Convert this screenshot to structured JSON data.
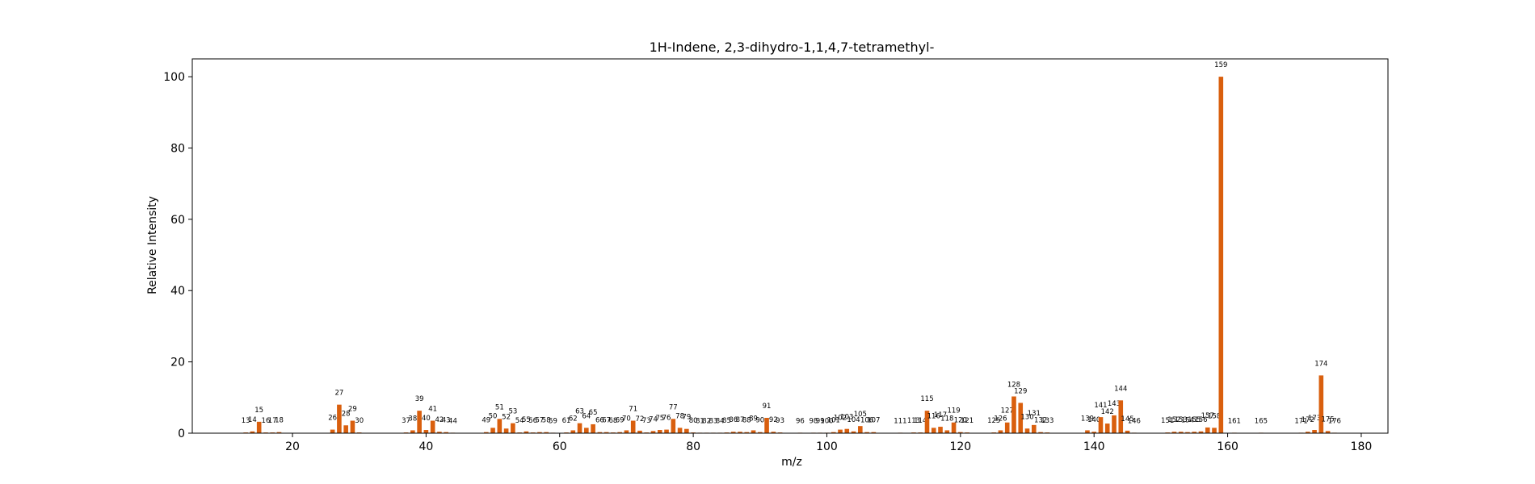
{
  "chart_data": {
    "type": "bar",
    "title": "1H-Indene, 2,3-dihydro-1,1,4,7-tetramethyl-",
    "xlabel": "m/z",
    "ylabel": "Relative Intensity",
    "xlim": [
      5,
      184
    ],
    "ylim": [
      0,
      105
    ],
    "xticks": [
      20,
      40,
      60,
      80,
      100,
      120,
      140,
      160,
      180
    ],
    "yticks": [
      0,
      20,
      40,
      60,
      80,
      100
    ],
    "grid": false,
    "bar_color": "#d95f0e",
    "peaks": [
      {
        "x": 13,
        "y": 0.2
      },
      {
        "x": 14,
        "y": 0.5
      },
      {
        "x": 15,
        "y": 3.2
      },
      {
        "x": 16,
        "y": 0.2
      },
      {
        "x": 17,
        "y": 0.2
      },
      {
        "x": 18,
        "y": 0.3
      },
      {
        "x": 26,
        "y": 1.0
      },
      {
        "x": 27,
        "y": 8.0
      },
      {
        "x": 28,
        "y": 2.2
      },
      {
        "x": 29,
        "y": 3.5
      },
      {
        "x": 30,
        "y": 0.2
      },
      {
        "x": 37,
        "y": 0.2
      },
      {
        "x": 38,
        "y": 0.8
      },
      {
        "x": 39,
        "y": 6.3
      },
      {
        "x": 40,
        "y": 0.9
      },
      {
        "x": 41,
        "y": 3.5
      },
      {
        "x": 42,
        "y": 0.4
      },
      {
        "x": 43,
        "y": 0.3
      },
      {
        "x": 44,
        "y": 0.1
      },
      {
        "x": 49,
        "y": 0.3
      },
      {
        "x": 50,
        "y": 1.5
      },
      {
        "x": 51,
        "y": 4.0
      },
      {
        "x": 52,
        "y": 1.3
      },
      {
        "x": 53,
        "y": 2.8
      },
      {
        "x": 54,
        "y": 0.2
      },
      {
        "x": 55,
        "y": 0.5
      },
      {
        "x": 56,
        "y": 0.2
      },
      {
        "x": 57,
        "y": 0.3
      },
      {
        "x": 58,
        "y": 0.3
      },
      {
        "x": 59,
        "y": 0.1
      },
      {
        "x": 61,
        "y": 0.2
      },
      {
        "x": 62,
        "y": 0.8
      },
      {
        "x": 63,
        "y": 2.8
      },
      {
        "x": 64,
        "y": 1.5
      },
      {
        "x": 65,
        "y": 2.5
      },
      {
        "x": 66,
        "y": 0.3
      },
      {
        "x": 67,
        "y": 0.3
      },
      {
        "x": 68,
        "y": 0.2
      },
      {
        "x": 69,
        "y": 0.3
      },
      {
        "x": 70,
        "y": 0.8
      },
      {
        "x": 71,
        "y": 3.5
      },
      {
        "x": 72,
        "y": 0.7
      },
      {
        "x": 73,
        "y": 0.2
      },
      {
        "x": 74,
        "y": 0.6
      },
      {
        "x": 75,
        "y": 0.9
      },
      {
        "x": 76,
        "y": 1.0
      },
      {
        "x": 77,
        "y": 4.0
      },
      {
        "x": 78,
        "y": 1.5
      },
      {
        "x": 79,
        "y": 1.2
      },
      {
        "x": 80,
        "y": 0.2
      },
      {
        "x": 81,
        "y": 0.1
      },
      {
        "x": 82,
        "y": 0.1
      },
      {
        "x": 83,
        "y": 0.1
      },
      {
        "x": 84,
        "y": 0.1
      },
      {
        "x": 85,
        "y": 0.2
      },
      {
        "x": 86,
        "y": 0.4
      },
      {
        "x": 87,
        "y": 0.4
      },
      {
        "x": 88,
        "y": 0.3
      },
      {
        "x": 89,
        "y": 0.8
      },
      {
        "x": 90,
        "y": 0.3
      },
      {
        "x": 91,
        "y": 4.3
      },
      {
        "x": 92,
        "y": 0.4
      },
      {
        "x": 93,
        "y": 0.2
      },
      {
        "x": 96,
        "y": 0.1
      },
      {
        "x": 98,
        "y": 0.1
      },
      {
        "x": 99,
        "y": 0.1
      },
      {
        "x": 100,
        "y": 0.1
      },
      {
        "x": 101,
        "y": 0.3
      },
      {
        "x": 102,
        "y": 1.0
      },
      {
        "x": 103,
        "y": 1.2
      },
      {
        "x": 104,
        "y": 0.5
      },
      {
        "x": 105,
        "y": 2.0
      },
      {
        "x": 106,
        "y": 0.3
      },
      {
        "x": 107,
        "y": 0.3
      },
      {
        "x": 111,
        "y": 0.1
      },
      {
        "x": 113,
        "y": 0.2
      },
      {
        "x": 114,
        "y": 0.2
      },
      {
        "x": 115,
        "y": 6.3
      },
      {
        "x": 116,
        "y": 1.5
      },
      {
        "x": 117,
        "y": 1.8
      },
      {
        "x": 118,
        "y": 0.8
      },
      {
        "x": 119,
        "y": 3.0
      },
      {
        "x": 120,
        "y": 0.3
      },
      {
        "x": 121,
        "y": 0.2
      },
      {
        "x": 125,
        "y": 0.2
      },
      {
        "x": 126,
        "y": 0.8
      },
      {
        "x": 127,
        "y": 3.0
      },
      {
        "x": 128,
        "y": 10.3
      },
      {
        "x": 129,
        "y": 8.5
      },
      {
        "x": 130,
        "y": 1.3
      },
      {
        "x": 131,
        "y": 2.3
      },
      {
        "x": 132,
        "y": 0.3
      },
      {
        "x": 133,
        "y": 0.2
      },
      {
        "x": 139,
        "y": 0.8
      },
      {
        "x": 140,
        "y": 0.4
      },
      {
        "x": 141,
        "y": 4.5
      },
      {
        "x": 142,
        "y": 2.7
      },
      {
        "x": 143,
        "y": 5.0
      },
      {
        "x": 144,
        "y": 9.2
      },
      {
        "x": 145,
        "y": 0.7
      },
      {
        "x": 146,
        "y": 0.1
      },
      {
        "x": 151,
        "y": 0.2
      },
      {
        "x": 152,
        "y": 0.4
      },
      {
        "x": 153,
        "y": 0.4
      },
      {
        "x": 154,
        "y": 0.3
      },
      {
        "x": 155,
        "y": 0.4
      },
      {
        "x": 156,
        "y": 0.5
      },
      {
        "x": 157,
        "y": 1.6
      },
      {
        "x": 158,
        "y": 1.5
      },
      {
        "x": 159,
        "y": 100.0
      },
      {
        "x": 161,
        "y": 0.1
      },
      {
        "x": 165,
        "y": 0.1
      },
      {
        "x": 171,
        "y": 0.1
      },
      {
        "x": 172,
        "y": 0.4
      },
      {
        "x": 173,
        "y": 0.9
      },
      {
        "x": 174,
        "y": 16.2
      },
      {
        "x": 175,
        "y": 0.6
      },
      {
        "x": 176,
        "y": 0.1
      }
    ]
  }
}
